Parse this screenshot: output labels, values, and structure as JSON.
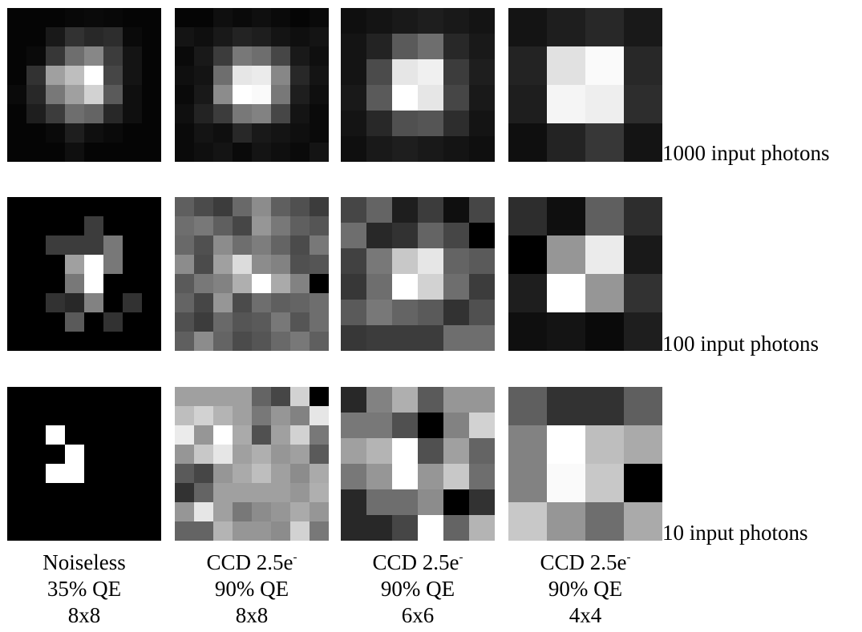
{
  "rows": [
    {
      "label": "1000 input photons",
      "tiles": [
        {
          "grid": 8,
          "pixels": [
            [
              5,
              5,
              5,
              8,
              10,
              8,
              5,
              5
            ],
            [
              5,
              5,
              25,
              50,
              40,
              45,
              10,
              5
            ],
            [
              5,
              10,
              55,
              110,
              135,
              60,
              20,
              5
            ],
            [
              5,
              50,
              160,
              190,
              255,
              70,
              20,
              5
            ],
            [
              10,
              40,
              120,
              160,
              210,
              90,
              15,
              5
            ],
            [
              5,
              30,
              60,
              110,
              100,
              40,
              15,
              5
            ],
            [
              5,
              5,
              10,
              30,
              15,
              10,
              5,
              5
            ],
            [
              5,
              5,
              5,
              15,
              5,
              5,
              5,
              5
            ]
          ]
        },
        {
          "grid": 8,
          "pixels": [
            [
              5,
              5,
              15,
              10,
              15,
              10,
              5,
              10
            ],
            [
              20,
              15,
              25,
              35,
              30,
              20,
              15,
              20
            ],
            [
              10,
              25,
              60,
              120,
              110,
              70,
              25,
              15
            ],
            [
              15,
              20,
              110,
              230,
              235,
              135,
              40,
              20
            ],
            [
              10,
              25,
              140,
              255,
              250,
              120,
              30,
              15
            ],
            [
              15,
              35,
              60,
              120,
              130,
              70,
              20,
              10
            ],
            [
              10,
              20,
              15,
              40,
              25,
              20,
              15,
              10
            ],
            [
              10,
              15,
              20,
              10,
              20,
              15,
              10,
              20
            ]
          ]
        },
        {
          "grid": 6,
          "pixels": [
            [
              15,
              20,
              25,
              30,
              25,
              20
            ],
            [
              20,
              35,
              90,
              110,
              40,
              25
            ],
            [
              20,
              75,
              230,
              240,
              60,
              30
            ],
            [
              25,
              90,
              255,
              230,
              70,
              25
            ],
            [
              20,
              40,
              80,
              85,
              45,
              20
            ],
            [
              15,
              25,
              30,
              25,
              20,
              15
            ]
          ]
        },
        {
          "grid": 4,
          "pixels": [
            [
              20,
              30,
              40,
              25
            ],
            [
              35,
              225,
              250,
              40
            ],
            [
              30,
              245,
              238,
              45
            ],
            [
              15,
              35,
              55,
              20
            ]
          ]
        }
      ]
    },
    {
      "label": "100 input photons",
      "tiles": [
        {
          "grid": 8,
          "pixels": [
            [
              0,
              0,
              0,
              0,
              0,
              0,
              0,
              0
            ],
            [
              0,
              0,
              0,
              0,
              60,
              0,
              0,
              0
            ],
            [
              0,
              0,
              60,
              60,
              60,
              120,
              0,
              0
            ],
            [
              0,
              0,
              0,
              160,
              255,
              120,
              0,
              0
            ],
            [
              0,
              0,
              0,
              120,
              255,
              0,
              0,
              0
            ],
            [
              0,
              0,
              50,
              40,
              130,
              0,
              50,
              0
            ],
            [
              0,
              0,
              0,
              90,
              0,
              50,
              0,
              0
            ],
            [
              0,
              0,
              0,
              0,
              0,
              0,
              0,
              0
            ]
          ]
        },
        {
          "grid": 8,
          "pixels": [
            [
              95,
              75,
              60,
              105,
              140,
              95,
              80,
              60
            ],
            [
              110,
              120,
              95,
              70,
              150,
              120,
              95,
              85
            ],
            [
              105,
              80,
              140,
              110,
              125,
              100,
              75,
              120
            ],
            [
              140,
              75,
              160,
              220,
              140,
              130,
              80,
              85
            ],
            [
              90,
              120,
              130,
              175,
              255,
              170,
              130,
              0
            ],
            [
              100,
              70,
              150,
              75,
              110,
              95,
              100,
              110
            ],
            [
              80,
              60,
              105,
              85,
              90,
              120,
              85,
              110
            ],
            [
              95,
              140,
              100,
              75,
              85,
              105,
              120,
              95
            ]
          ]
        },
        {
          "grid": 6,
          "pixels": [
            [
              70,
              100,
              30,
              60,
              15,
              70
            ],
            [
              110,
              40,
              50,
              100,
              70,
              0
            ],
            [
              65,
              120,
              200,
              230,
              100,
              90
            ],
            [
              55,
              110,
              255,
              210,
              110,
              60
            ],
            [
              90,
              120,
              100,
              90,
              50,
              80
            ],
            [
              55,
              60,
              60,
              60,
              110,
              110
            ]
          ]
        },
        {
          "grid": 4,
          "pixels": [
            [
              45,
              15,
              95,
              45
            ],
            [
              0,
              150,
              235,
              25
            ],
            [
              30,
              255,
              150,
              50
            ],
            [
              15,
              20,
              10,
              30
            ]
          ]
        }
      ]
    },
    {
      "label": "10 input photons",
      "tiles": [
        {
          "grid": 8,
          "pixels": [
            [
              0,
              0,
              0,
              0,
              0,
              0,
              0,
              0
            ],
            [
              0,
              0,
              0,
              0,
              0,
              0,
              0,
              0
            ],
            [
              0,
              0,
              255,
              0,
              0,
              0,
              0,
              0
            ],
            [
              0,
              0,
              0,
              255,
              0,
              0,
              0,
              0
            ],
            [
              0,
              0,
              255,
              255,
              0,
              0,
              0,
              0
            ],
            [
              0,
              0,
              0,
              0,
              0,
              0,
              0,
              0
            ],
            [
              0,
              0,
              0,
              0,
              0,
              0,
              0,
              0
            ],
            [
              0,
              0,
              0,
              0,
              0,
              0,
              0,
              0
            ]
          ]
        },
        {
          "grid": 8,
          "pixels": [
            [
              160,
              160,
              160,
              160,
              100,
              70,
              210,
              0
            ],
            [
              190,
              210,
              180,
              160,
              120,
              150,
              130,
              230
            ],
            [
              235,
              150,
              255,
              170,
              80,
              160,
              210,
              120
            ],
            [
              150,
              200,
              230,
              160,
              175,
              150,
              160,
              90
            ],
            [
              90,
              70,
              150,
              170,
              190,
              160,
              140,
              170
            ],
            [
              50,
              100,
              160,
              160,
              160,
              160,
              150,
              175
            ],
            [
              150,
              230,
              160,
              120,
              140,
              150,
              170,
              150
            ],
            [
              100,
              100,
              180,
              150,
              150,
              140,
              210,
              120
            ]
          ]
        },
        {
          "grid": 6,
          "pixels": [
            [
              40,
              130,
              175,
              90,
              150,
              150
            ],
            [
              120,
              120,
              80,
              0,
              130,
              210
            ],
            [
              160,
              180,
              255,
              80,
              160,
              100
            ],
            [
              120,
              150,
              255,
              150,
              200,
              110
            ],
            [
              40,
              110,
              110,
              140,
              0,
              50
            ],
            [
              40,
              40,
              70,
              255,
              100,
              180
            ]
          ]
        },
        {
          "grid": 4,
          "pixels": [
            [
              95,
              50,
              50,
              95
            ],
            [
              130,
              255,
              190,
              170
            ],
            [
              130,
              250,
              200,
              0
            ],
            [
              200,
              150,
              110,
              170
            ]
          ]
        }
      ]
    }
  ],
  "columns": [
    {
      "line1": "Noiseless",
      "sup": "",
      "line2": "35% QE",
      "line3": "8x8"
    },
    {
      "line1": "CCD 2.5e",
      "sup": "-",
      "line2": "90% QE",
      "line3": "8x8"
    },
    {
      "line1": "CCD 2.5e",
      "sup": "-",
      "line2": "90% QE",
      "line3": "6x6"
    },
    {
      "line1": "CCD 2.5e",
      "sup": "-",
      "line2": "90% QE",
      "line3": "4x4"
    }
  ]
}
